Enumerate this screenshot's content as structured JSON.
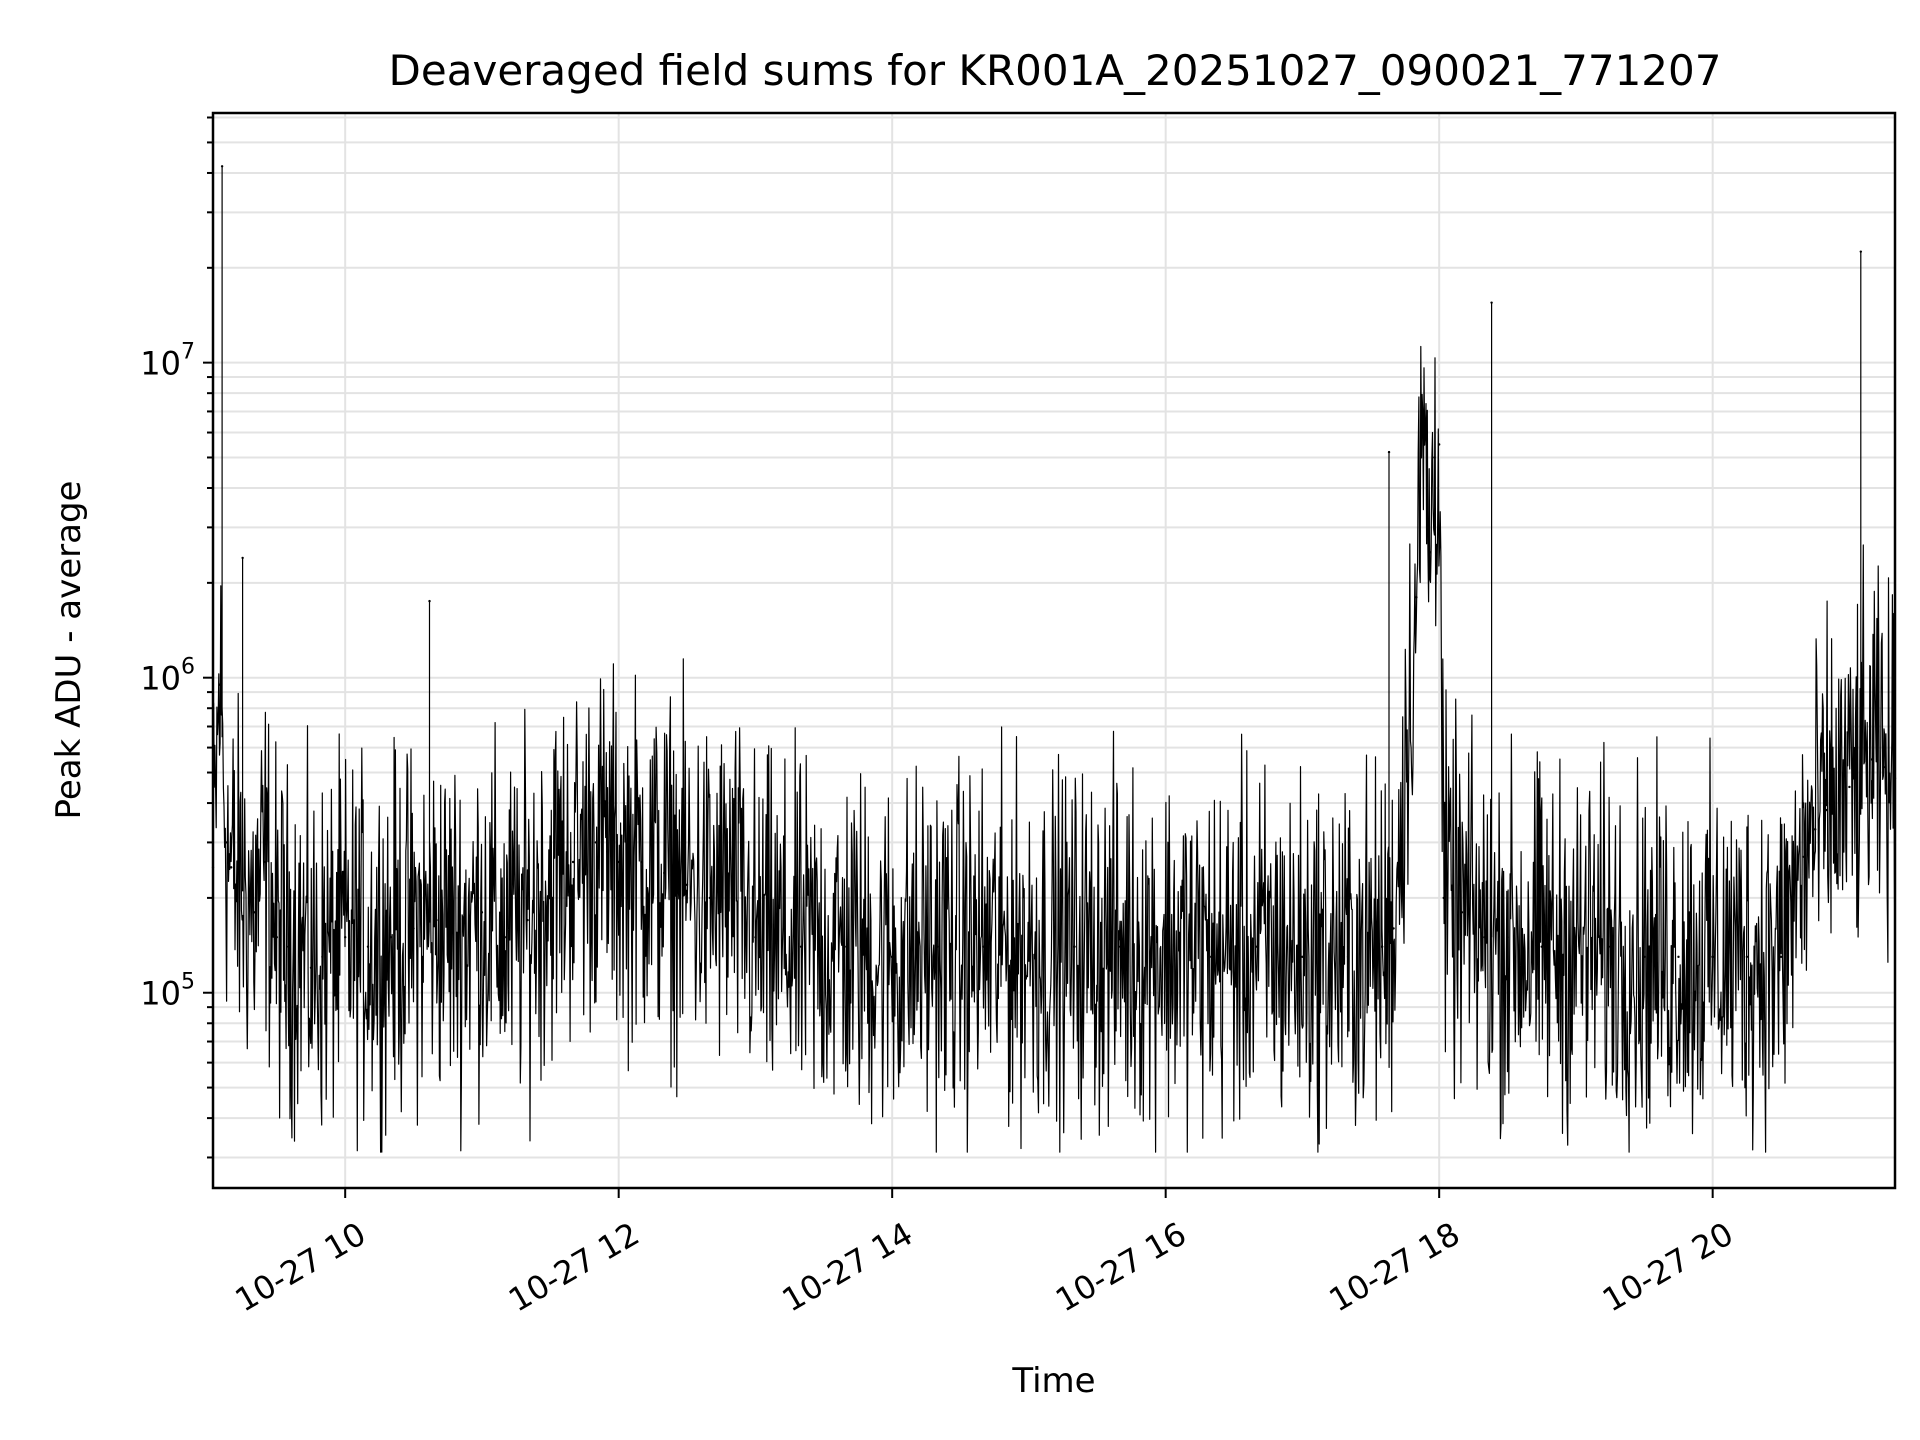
{
  "chart_data": {
    "type": "line",
    "title": "Deaveraged field sums for KR001A_20251027_090021_771207",
    "xlabel": "Time",
    "ylabel": "Peak ADU - average",
    "yscale": "log",
    "ylim": [
      24000,
      62000000
    ],
    "xlim": [
      "2025-10-27 09:02",
      "2025-10-27 21:20"
    ],
    "grid": true,
    "legend": "none",
    "line_color": "#000000",
    "x_ticks": [
      "2025-10-27 10:00",
      "2025-10-27 12:00",
      "2025-10-27 14:00",
      "2025-10-27 16:00",
      "2025-10-27 18:00",
      "2025-10-27 20:00"
    ],
    "x_tick_labels": [
      "10-27 10",
      "10-27 12",
      "10-27 14",
      "10-27 16",
      "10-27 18",
      "10-27 20"
    ],
    "y_ticks": [
      100000,
      1000000,
      10000000
    ],
    "y_tick_labels": [
      {
        "base": "10",
        "exp": "5"
      },
      {
        "base": "10",
        "exp": "6"
      },
      {
        "base": "10",
        "exp": "7"
      }
    ],
    "series": [
      {
        "x": [
          "09:02",
          "09:05",
          "09:06",
          "09:08",
          "09:10",
          "09:12",
          "09:15",
          "09:18",
          "09:20",
          "09:25",
          "09:30",
          "09:35",
          "09:40",
          "09:45",
          "09:50",
          "10:00",
          "10:10",
          "10:20",
          "10:30",
          "10:37",
          "10:40",
          "10:50",
          "11:00",
          "11:10",
          "11:20",
          "11:30",
          "11:40",
          "11:50",
          "11:55",
          "12:00",
          "12:10",
          "12:20",
          "12:30",
          "12:40",
          "12:50",
          "13:00",
          "13:20",
          "13:40",
          "14:00",
          "14:20",
          "14:40",
          "15:00",
          "15:20",
          "15:40",
          "16:00",
          "16:20",
          "16:40",
          "17:00",
          "17:20",
          "17:35",
          "17:38",
          "17:40",
          "17:50",
          "17:53",
          "17:56",
          "17:58",
          "18:00",
          "18:02",
          "18:10",
          "18:20",
          "18:23",
          "18:30",
          "18:45",
          "19:00",
          "19:15",
          "19:30",
          "19:45",
          "20:00",
          "20:15",
          "20:30",
          "20:40",
          "20:45",
          "20:50",
          "21:00",
          "21:05",
          "21:10",
          "21:15",
          "21:20"
        ],
        "y": [
          250000,
          950000,
          42000000,
          300000,
          250000,
          220000,
          2400000,
          200000,
          180000,
          260000,
          150000,
          140000,
          150000,
          120000,
          130000,
          150000,
          140000,
          150000,
          160000,
          1750000,
          170000,
          160000,
          180000,
          150000,
          170000,
          230000,
          260000,
          300000,
          280000,
          260000,
          260000,
          240000,
          220000,
          200000,
          210000,
          150000,
          140000,
          140000,
          130000,
          140000,
          140000,
          140000,
          140000,
          140000,
          140000,
          130000,
          140000,
          130000,
          130000,
          140000,
          5200000,
          160000,
          1800000,
          6500000,
          2500000,
          5000000,
          5500000,
          200000,
          180000,
          150000,
          15500000,
          150000,
          140000,
          140000,
          140000,
          130000,
          130000,
          130000,
          130000,
          130000,
          270000,
          330000,
          380000,
          450000,
          22500000,
          550000,
          520000,
          480000
        ]
      }
    ]
  }
}
